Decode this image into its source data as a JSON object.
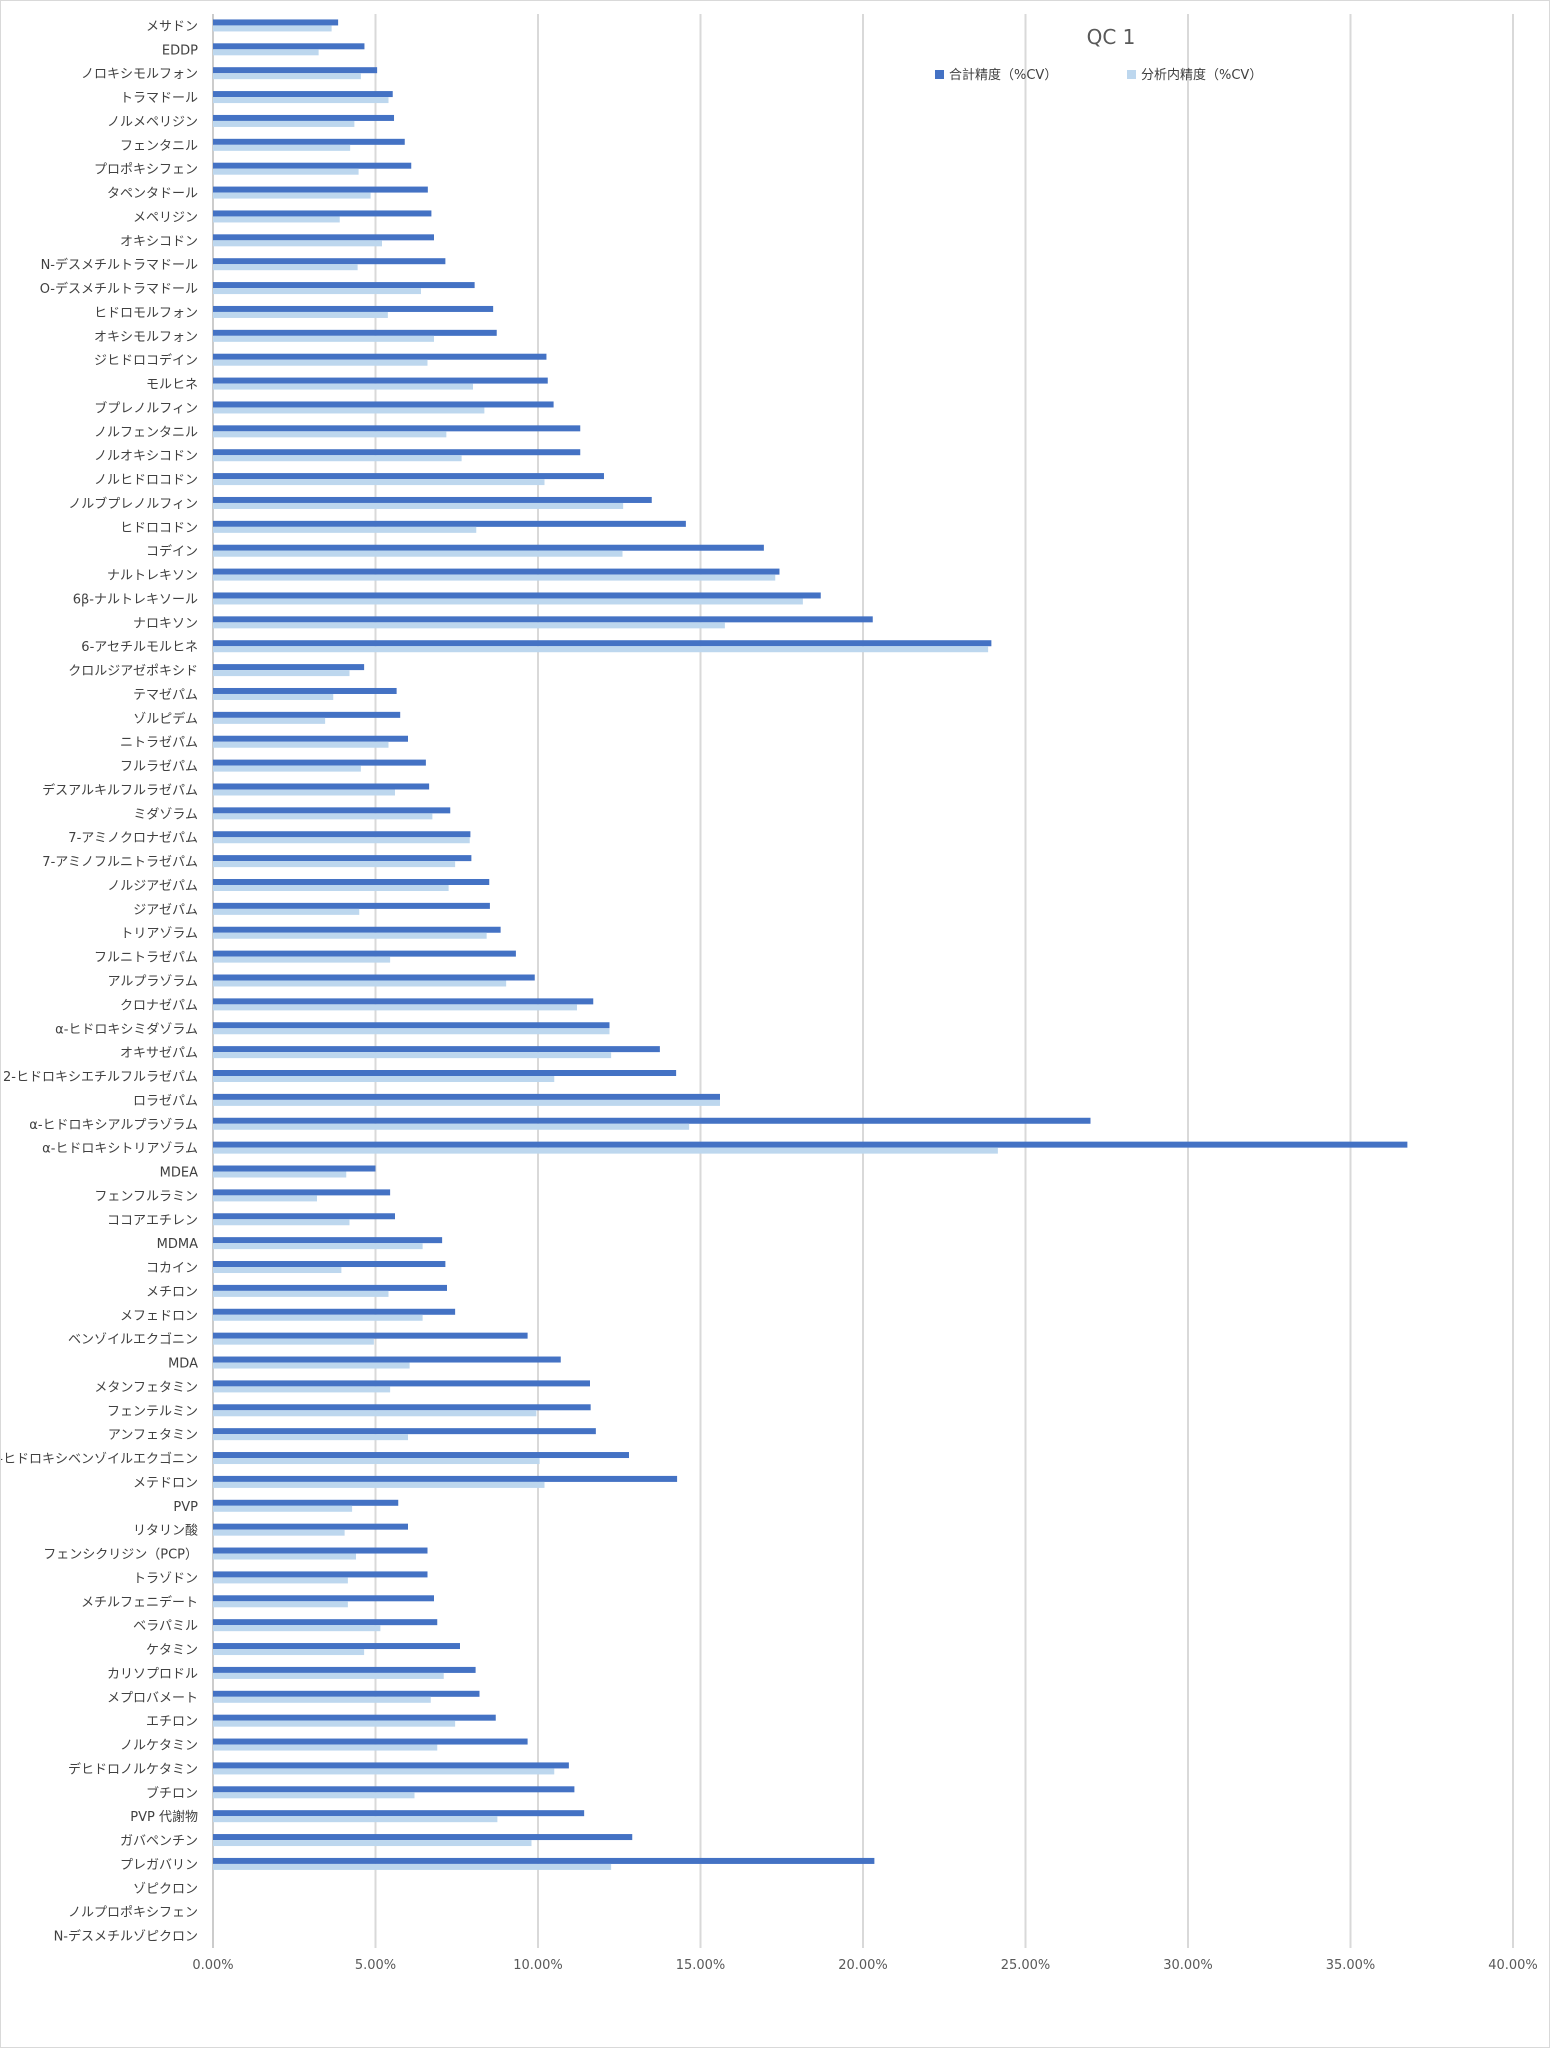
{
  "chart_data": {
    "type": "bar",
    "orientation": "horizontal",
    "title": "QC 1",
    "xlim": [
      0,
      0.4
    ],
    "x_ticks": [
      "0.00%",
      "5.00%",
      "10.00%",
      "15.00%",
      "20.00%",
      "25.00%",
      "30.00%",
      "35.00%",
      "40.00%"
    ],
    "grid": "vertical",
    "legend_position": "top-right",
    "categories": [
      "メサドン",
      "EDDP",
      "ノロキシモルフォン",
      "トラマドール",
      "ノルメペリジン",
      "フェンタニル",
      "プロポキシフェン",
      "タペンタドール",
      "メペリジン",
      "オキシコドン",
      "N-デスメチルトラマドール",
      "O-デスメチルトラマドール",
      "ヒドロモルフォン",
      "オキシモルフォン",
      "ジヒドロコデイン",
      "モルヒネ",
      "ブプレノルフィン",
      "ノルフェンタニル",
      "ノルオキシコドン",
      "ノルヒドロコドン",
      "ノルブプレノルフィン",
      "ヒドロコドン",
      "コデイン",
      "ナルトレキソン",
      "6β-ナルトレキソール",
      "ナロキソン",
      "6-アセチルモルヒネ",
      "クロルジアゼポキシド",
      "テマゼパム",
      "ゾルピデム",
      "ニトラゼパム",
      "フルラゼパム",
      "デスアルキルフルラゼパム",
      "ミダゾラム",
      "7-アミノクロナゼパム",
      "7-アミノフルニトラゼパム",
      "ノルジアゼパム",
      "ジアゼパム",
      "トリアゾラム",
      "フルニトラゼパム",
      "アルプラゾラム",
      "クロナゼパム",
      "α-ヒドロキシミダゾラム",
      "オキサゼパム",
      "2-ヒドロキシエチルフルラゼパム",
      "ロラゼパム",
      "α-ヒドロキシアルプラゾラム",
      "α-ヒドロキシトリアゾラム",
      "MDEA",
      "フェンフルラミン",
      "ココアエチレン",
      "MDMA",
      "コカイン",
      "メチロン",
      "メフェドロン",
      "ベンゾイルエクゴニン",
      "MDA",
      "メタンフェタミン",
      "フェンテルミン",
      "アンフェタミン",
      "m-ヒドロキシベンゾイルエクゴニン",
      "メテドロン",
      "PVP",
      "リタリン酸",
      "フェンシクリジン（PCP）",
      "トラゾドン",
      "メチルフェニデート",
      "ベラパミル",
      "ケタミン",
      "カリソプロドル",
      "メプロバメート",
      "エチロン",
      "ノルケタミン",
      "デヒドロノルケタミン",
      "ブチロン",
      "PVP 代謝物",
      "ガバペンチン",
      "プレガバリン",
      "ゾピクロン",
      "ノルプロポキシフェン",
      "N-デスメチルゾピクロン"
    ],
    "series": [
      {
        "name": "合計精度（%CV）",
        "color": "#4472c4",
        "values": [
          0.0385,
          0.0466,
          0.0505,
          0.0553,
          0.0557,
          0.059,
          0.061,
          0.0661,
          0.0672,
          0.068,
          0.0715,
          0.0805,
          0.0862,
          0.0873,
          0.1026,
          0.103,
          0.1048,
          0.113,
          0.113,
          0.1203,
          0.135,
          0.1455,
          0.1695,
          0.1743,
          0.187,
          0.203,
          0.2395,
          0.0465,
          0.0565,
          0.0576,
          0.06,
          0.0655,
          0.0665,
          0.073,
          0.0792,
          0.0795,
          0.085,
          0.0852,
          0.0885,
          0.0932,
          0.099,
          0.117,
          0.122,
          0.1375,
          0.1425,
          0.156,
          0.27,
          0.3675,
          0.05,
          0.0545,
          0.056,
          0.0705,
          0.0715,
          0.072,
          0.0745,
          0.0968,
          0.107,
          0.116,
          0.1162,
          0.1178,
          0.128,
          0.1428,
          0.057,
          0.06,
          0.066,
          0.066,
          0.068,
          0.069,
          0.076,
          0.0808,
          0.082,
          0.087,
          0.0968,
          0.1095,
          0.1112,
          0.1142,
          0.129,
          0.2035,
          0,
          0,
          0
        ]
      },
      {
        "name": "分析内精度（%CV）",
        "color": "#bdd7ee",
        "values": [
          0.0365,
          0.0325,
          0.0455,
          0.054,
          0.0435,
          0.0422,
          0.0448,
          0.0485,
          0.039,
          0.052,
          0.0445,
          0.064,
          0.0538,
          0.068,
          0.066,
          0.08,
          0.0835,
          0.0718,
          0.0765,
          0.102,
          0.1262,
          0.081,
          0.126,
          0.173,
          0.1815,
          0.1575,
          0.2385,
          0.042,
          0.037,
          0.0345,
          0.054,
          0.0455,
          0.056,
          0.0675,
          0.079,
          0.0745,
          0.0725,
          0.045,
          0.0842,
          0.0545,
          0.0902,
          0.112,
          0.122,
          0.1225,
          0.105,
          0.156,
          0.1465,
          0.2415,
          0.041,
          0.032,
          0.042,
          0.0645,
          0.0395,
          0.054,
          0.0645,
          0.0495,
          0.0605,
          0.0545,
          0.0995,
          0.06,
          0.1005,
          0.102,
          0.0428,
          0.0405,
          0.044,
          0.0415,
          0.0415,
          0.0515,
          0.0465,
          0.071,
          0.067,
          0.0745,
          0.069,
          0.105,
          0.062,
          0.0875,
          0.098,
          0.1225,
          0,
          0,
          0
        ]
      }
    ]
  }
}
